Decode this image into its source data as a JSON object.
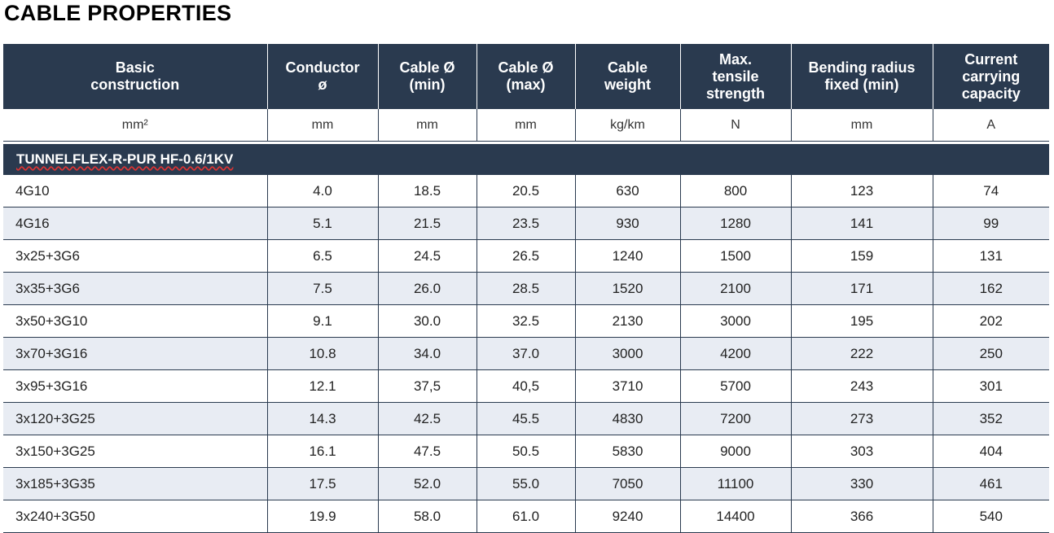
{
  "title": "CABLE PROPERTIES",
  "headers": [
    "Basic\nconstruction",
    "Conductor\nø",
    "Cable Ø\n(min)",
    "Cable Ø\n(max)",
    "Cable\nweight",
    "Max.\ntensile\nstrength",
    "Bending radius\nfixed (min)",
    "Current\ncarrying\ncapacity"
  ],
  "units": [
    "mm²",
    "mm",
    "mm",
    "mm",
    "kg/km",
    "N",
    "mm",
    "A"
  ],
  "section": "TUNNELFLEX-R-PUR HF-0.6/1KV",
  "rows": [
    [
      "4G10",
      "4.0",
      "18.5",
      "20.5",
      "630",
      "800",
      "123",
      "74"
    ],
    [
      "4G16",
      "5.1",
      "21.5",
      "23.5",
      "930",
      "1280",
      "141",
      "99"
    ],
    [
      "3x25+3G6",
      "6.5",
      "24.5",
      "26.5",
      "1240",
      "1500",
      "159",
      "131"
    ],
    [
      "3x35+3G6",
      "7.5",
      "26.0",
      "28.5",
      "1520",
      "2100",
      "171",
      "162"
    ],
    [
      "3x50+3G10",
      "9.1",
      "30.0",
      "32.5",
      "2130",
      "3000",
      "195",
      "202"
    ],
    [
      "3x70+3G16",
      "10.8",
      "34.0",
      "37.0",
      "3000",
      "4200",
      "222",
      "250"
    ],
    [
      "3x95+3G16",
      "12.1",
      "37,5",
      "40,5",
      "3710",
      "5700",
      "243",
      "301"
    ],
    [
      "3x120+3G25",
      "14.3",
      "42.5",
      "45.5",
      "4830",
      "7200",
      "273",
      "352"
    ],
    [
      "3x150+3G25",
      "16.1",
      "47.5",
      "50.5",
      "5830",
      "9000",
      "303",
      "404"
    ],
    [
      "3x185+3G35",
      "17.5",
      "52.0",
      "55.0",
      "7050",
      "11100",
      "330",
      "461"
    ],
    [
      "3x240+3G50",
      "19.9",
      "58.0",
      "61.0",
      "9240",
      "14400",
      "366",
      "540"
    ]
  ]
}
